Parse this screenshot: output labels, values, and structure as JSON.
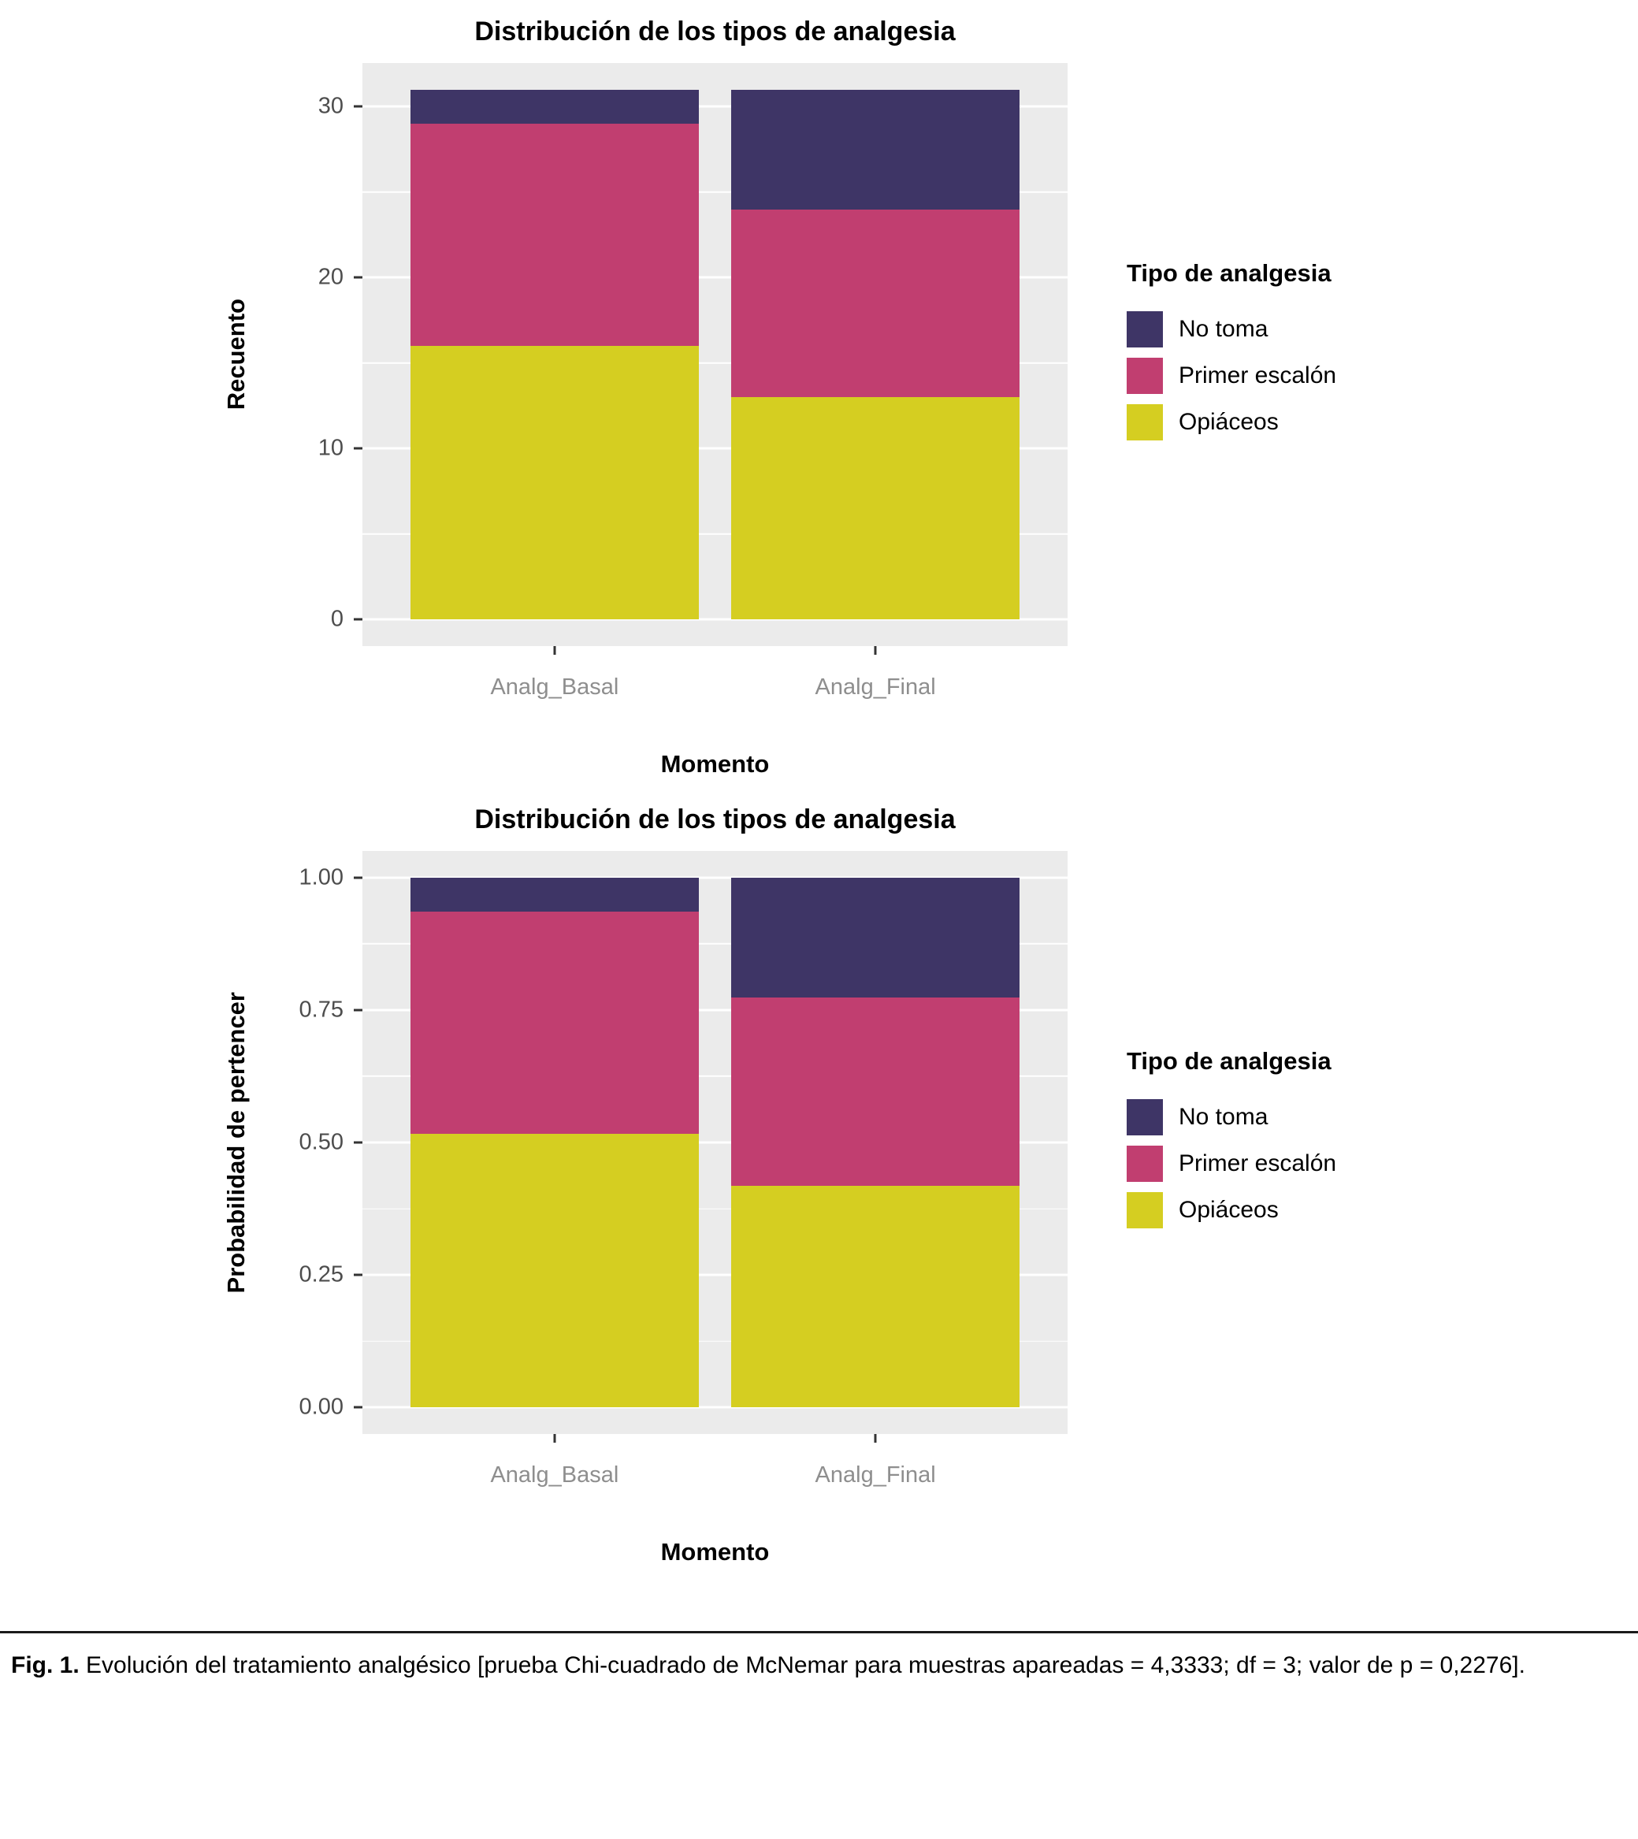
{
  "figure": {
    "caption_prefix": "Fig. 1.",
    "caption_text": "Evolución del tratamiento analgésico [prueba Chi-cuadrado de McNemar para muestras apareadas = 4,3333; df = 3; valor de p = 0,2276]."
  },
  "palette": {
    "panel_bg": "#EBEBEB",
    "grid": "#FFFFFF",
    "axis_text": "#4D4D4D",
    "category_text": "#8E8E8E",
    "tick_mark": "#333333",
    "no_toma": "#3E3566",
    "primer_escalon": "#C13E70",
    "opiaceos": "#D5CE21"
  },
  "chart_data": [
    {
      "type": "bar",
      "stacked": true,
      "title": "Distribución de los tipos de analgesia",
      "xlabel": "Momento",
      "ylabel": "Recuento",
      "categories": [
        "Analg_Basal",
        "Analg_Final"
      ],
      "series": [
        {
          "name": "Opiáceos",
          "color": "#D5CE21",
          "values": [
            16,
            13
          ]
        },
        {
          "name": "Primer escalón",
          "color": "#C13E70",
          "values": [
            13,
            11
          ]
        },
        {
          "name": "No toma",
          "color": "#3E3566",
          "values": [
            2,
            7
          ]
        }
      ],
      "totals": [
        31,
        31
      ],
      "ylim": [
        0,
        31
      ],
      "axis_range": [
        -1.55,
        32.55
      ],
      "yticks": [
        {
          "v": 0,
          "label": "0"
        },
        {
          "v": 10,
          "label": "10"
        },
        {
          "v": 20,
          "label": "20"
        },
        {
          "v": 30,
          "label": "30"
        }
      ],
      "minor_ticks": [
        5,
        15,
        25
      ],
      "grid": true,
      "legend_position": "right",
      "legend_title": "Tipo de analgesia",
      "legend_order": [
        "No toma",
        "Primer escalón",
        "Opiáceos"
      ]
    },
    {
      "type": "bar",
      "stacked": true,
      "title": "Distribución de los tipos de analgesia",
      "xlabel": "Momento",
      "ylabel": "Probabilidad de pertencer",
      "categories": [
        "Analg_Basal",
        "Analg_Final"
      ],
      "series": [
        {
          "name": "Opiáceos",
          "color": "#D5CE21",
          "values": [
            0.516,
            0.419
          ]
        },
        {
          "name": "Primer escalón",
          "color": "#C13E70",
          "values": [
            0.419,
            0.355
          ]
        },
        {
          "name": "No toma",
          "color": "#3E3566",
          "values": [
            0.065,
            0.226
          ]
        }
      ],
      "ylim": [
        0,
        1
      ],
      "axis_range": [
        -0.05,
        1.05
      ],
      "yticks": [
        {
          "v": 0,
          "label": "0.00"
        },
        {
          "v": 0.25,
          "label": "0.25"
        },
        {
          "v": 0.5,
          "label": "0.50"
        },
        {
          "v": 0.75,
          "label": "0.75"
        },
        {
          "v": 1,
          "label": "1.00"
        }
      ],
      "minor_ticks": [
        0.125,
        0.375,
        0.625,
        0.875
      ],
      "grid": true,
      "legend_position": "right",
      "legend_title": "Tipo de analgesia",
      "legend_order": [
        "No toma",
        "Primer escalón",
        "Opiáceos"
      ]
    }
  ]
}
